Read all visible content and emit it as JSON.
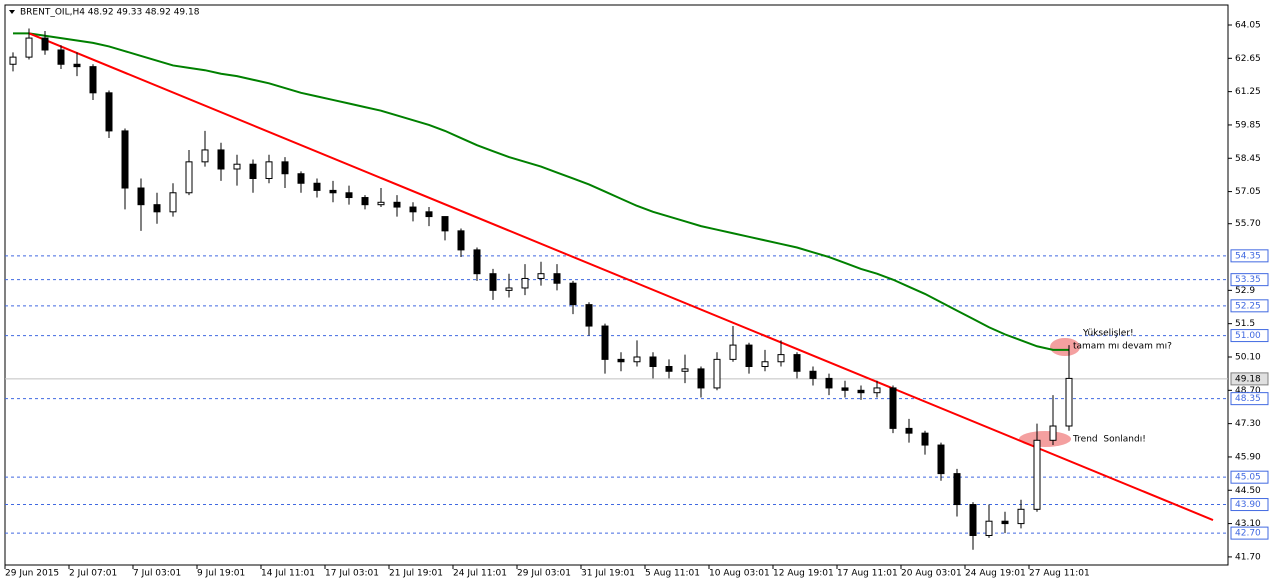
{
  "chart_data": {
    "type": "candlestick",
    "title": "BRENT_OIL,H4  48.92 49.33 48.92 49.18",
    "categories": [
      "29 Jun 2015",
      null,
      null,
      null,
      "2 Jul 07:01",
      null,
      null,
      null,
      "7 Jul 03:01",
      null,
      null,
      null,
      "9 Jul 19:01",
      null,
      null,
      null,
      "14 Jul 11:01",
      null,
      null,
      null,
      "17 Jul 03:01",
      null,
      null,
      null,
      "21 Jul 19:01",
      null,
      null,
      null,
      "24 Jul 11:01",
      null,
      null,
      null,
      "29 Jul 03:01",
      null,
      null,
      null,
      "31 Jul 19:01",
      null,
      null,
      null,
      "5 Aug 11:01",
      null,
      null,
      null,
      "10 Aug 03:01",
      null,
      null,
      null,
      "12 Aug 19:01",
      null,
      null,
      null,
      "17 Aug 11:01",
      null,
      null,
      null,
      "20 Aug 03:01",
      null,
      null,
      null,
      "24 Aug 19:01",
      null,
      null,
      null,
      "27 Aug 11:01",
      null,
      null
    ],
    "open": [
      62.4,
      62.7,
      63.5,
      63.0,
      62.4,
      62.3,
      61.2,
      59.6,
      57.2,
      56.5,
      56.2,
      57.0,
      58.3,
      58.8,
      58.0,
      58.2,
      57.6,
      58.3,
      57.8,
      57.4,
      57.1,
      57.0,
      56.8,
      56.5,
      56.6,
      56.4,
      56.2,
      56.0,
      55.4,
      54.6,
      53.6,
      52.9,
      53.0,
      53.4,
      53.6,
      53.2,
      52.3,
      51.4,
      50.0,
      49.9,
      50.1,
      49.7,
      49.5,
      49.6,
      48.8,
      50.0,
      50.6,
      49.7,
      49.9,
      50.2,
      49.5,
      49.2,
      48.8,
      48.7,
      48.6,
      48.8,
      47.1,
      46.9,
      46.4,
      45.2,
      43.9,
      42.6,
      43.2,
      43.1,
      43.7,
      46.6,
      47.2
    ],
    "high": [
      62.9,
      63.9,
      63.8,
      63.2,
      62.9,
      62.4,
      61.3,
      59.7,
      57.6,
      57.0,
      57.4,
      58.8,
      59.6,
      59.1,
      58.6,
      58.4,
      58.6,
      58.5,
      57.9,
      57.6,
      57.5,
      57.3,
      56.9,
      57.2,
      56.9,
      56.6,
      56.4,
      56.0,
      55.5,
      54.7,
      53.8,
      53.6,
      54.0,
      54.1,
      54.0,
      53.3,
      52.4,
      51.5,
      50.3,
      50.8,
      50.3,
      50.0,
      50.2,
      49.7,
      50.3,
      51.4,
      50.7,
      50.4,
      50.8,
      50.3,
      49.7,
      49.4,
      49.1,
      48.9,
      49.1,
      48.9,
      47.5,
      47.0,
      46.5,
      45.4,
      44.0,
      43.9,
      43.6,
      44.1,
      47.3,
      48.5,
      50.6
    ],
    "low": [
      62.1,
      62.6,
      62.8,
      62.2,
      61.9,
      60.9,
      59.3,
      56.3,
      55.4,
      55.7,
      56.0,
      56.9,
      58.1,
      57.5,
      57.3,
      57.0,
      57.4,
      57.2,
      57.0,
      56.8,
      56.6,
      56.5,
      56.3,
      56.4,
      56.0,
      55.8,
      55.6,
      55.0,
      54.3,
      53.3,
      52.5,
      52.6,
      52.7,
      53.1,
      52.9,
      51.9,
      51.0,
      49.4,
      49.5,
      49.7,
      49.2,
      49.2,
      49.0,
      48.4,
      48.7,
      49.9,
      49.4,
      49.5,
      49.7,
      49.2,
      48.9,
      48.5,
      48.4,
      48.3,
      48.4,
      46.9,
      46.5,
      46.0,
      44.9,
      43.4,
      42.0,
      42.5,
      42.7,
      42.9,
      43.6,
      46.4,
      47.0
    ],
    "close": [
      62.7,
      63.5,
      63.0,
      62.4,
      62.3,
      61.2,
      59.6,
      57.2,
      56.5,
      56.2,
      57.0,
      58.3,
      58.8,
      58.0,
      58.2,
      57.6,
      58.3,
      57.8,
      57.4,
      57.1,
      57.0,
      56.8,
      56.5,
      56.6,
      56.4,
      56.2,
      56.0,
      55.4,
      54.6,
      53.6,
      52.9,
      53.0,
      53.4,
      53.6,
      53.2,
      52.3,
      51.4,
      50.0,
      49.9,
      50.1,
      49.7,
      49.5,
      49.6,
      48.8,
      50.0,
      50.6,
      49.7,
      49.9,
      50.2,
      49.5,
      49.2,
      48.8,
      48.7,
      48.6,
      48.8,
      47.1,
      46.9,
      46.4,
      45.2,
      43.9,
      42.6,
      43.2,
      43.1,
      43.7,
      46.6,
      47.2,
      49.2
    ],
    "ma": {
      "color": "#008000",
      "values": [
        63.7,
        63.7,
        63.6,
        63.5,
        63.4,
        63.3,
        63.15,
        62.95,
        62.75,
        62.55,
        62.35,
        62.25,
        62.15,
        62.0,
        61.9,
        61.75,
        61.6,
        61.4,
        61.2,
        61.05,
        60.9,
        60.75,
        60.6,
        60.45,
        60.25,
        60.05,
        59.85,
        59.6,
        59.3,
        59.0,
        58.75,
        58.5,
        58.3,
        58.1,
        57.85,
        57.6,
        57.35,
        57.05,
        56.75,
        56.45,
        56.2,
        56.0,
        55.8,
        55.6,
        55.45,
        55.3,
        55.15,
        55.0,
        54.85,
        54.7,
        54.5,
        54.3,
        54.05,
        53.8,
        53.6,
        53.35,
        53.05,
        52.75,
        52.4,
        52.05,
        51.7,
        51.35,
        51.05,
        50.8,
        50.55,
        50.4,
        50.4
      ]
    },
    "trendline": {
      "color": "#ff0000",
      "x": [
        1,
        75
      ],
      "values": [
        63.7,
        43.25
      ]
    },
    "levels": [
      54.35,
      53.35,
      52.25,
      {
        "value": 51,
        "label": "51.00"
      },
      48.35,
      45.05,
      {
        "value": 43.9,
        "label": "43.90"
      },
      {
        "value": 42.7,
        "label": "42.70"
      }
    ],
    "last_price": 49.18,
    "ylim": [
      41.36,
      64.89
    ],
    "yticks": [
      64.05,
      62.65,
      61.25,
      59.85,
      58.45,
      57.05,
      {
        "value": 55.7,
        "label": "55.70"
      },
      52.9,
      51.5,
      {
        "value": 50.1,
        "label": "50.10"
      },
      {
        "value": 48.7,
        "label": "48.70"
      },
      {
        "value": 47.3,
        "label": "47.30"
      },
      {
        "value": 45.9,
        "label": "45.90"
      },
      {
        "value": 44.5,
        "label": "44.50"
      },
      {
        "value": 43.1,
        "label": "43.10"
      },
      {
        "value": 41.7,
        "label": "41.70"
      }
    ],
    "annotations": [
      "Yükselişler!",
      "tamam mı devam mı?",
      "Trend  Sonlandı!"
    ]
  }
}
